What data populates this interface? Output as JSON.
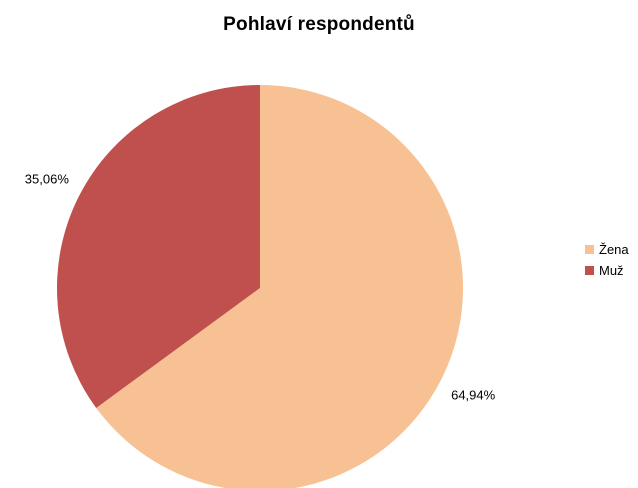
{
  "chart_data": {
    "type": "pie",
    "title": "Pohlaví respondentů",
    "categories": [
      "Žena",
      "Muž"
    ],
    "values": [
      64.94,
      35.06
    ],
    "data_labels": [
      "64,94%",
      "35,06%"
    ],
    "colors": [
      "#F8C193",
      "#C0504D"
    ],
    "legend_position": "right"
  }
}
